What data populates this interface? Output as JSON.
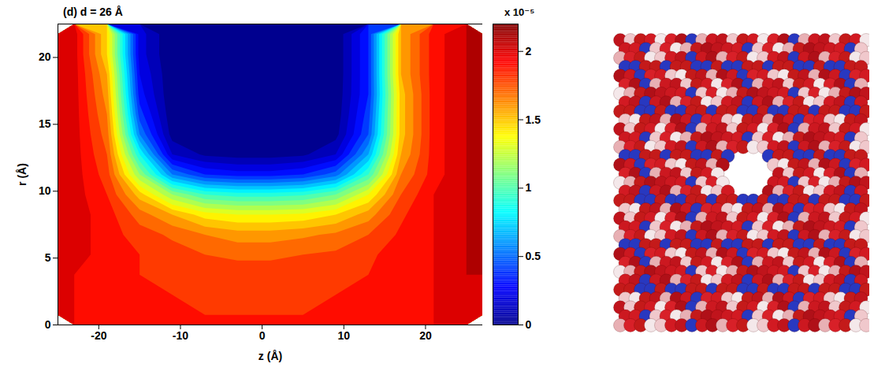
{
  "chart_data": {
    "type": "heatmap",
    "title": "(d) d = 26 Å",
    "x_label": "z (Å)",
    "y_label": "r (Å)",
    "xlim": [
      -25,
      27
    ],
    "xticks": [
      -20,
      -10,
      0,
      10,
      20
    ],
    "ylim": [
      0,
      22.5
    ],
    "yticks": [
      0,
      5,
      10,
      15,
      20
    ],
    "color": "jet",
    "z": [
      -23,
      -19,
      -15,
      -11,
      -7,
      -3,
      1,
      5,
      9,
      13,
      17,
      21,
      25
    ],
    "r": [
      0.75,
      2.25,
      3.75,
      5.25,
      6.75,
      8.25,
      9.75,
      11.25,
      12.75,
      14.25,
      15.75,
      17.25,
      18.75,
      20.25,
      21.75
    ],
    "cells": [
      [
        2.0,
        1.95,
        1.9,
        1.9,
        1.9,
        1.9,
        1.9,
        1.9,
        1.9,
        1.9,
        1.95,
        2.0,
        2.05
      ],
      [
        2.0,
        1.95,
        1.9,
        1.9,
        1.88,
        1.88,
        1.88,
        1.88,
        1.9,
        1.9,
        1.95,
        2.0,
        2.05
      ],
      [
        2.0,
        1.95,
        1.9,
        1.88,
        1.85,
        1.85,
        1.85,
        1.85,
        1.88,
        1.9,
        1.95,
        2.0,
        2.1
      ],
      [
        2.05,
        1.95,
        1.9,
        1.85,
        1.8,
        1.78,
        1.78,
        1.8,
        1.82,
        1.88,
        1.95,
        2.0,
        2.1
      ],
      [
        2.05,
        1.95,
        1.85,
        1.78,
        1.7,
        1.65,
        1.65,
        1.68,
        1.72,
        1.8,
        1.92,
        2.0,
        2.1
      ],
      [
        2.05,
        1.95,
        1.75,
        1.6,
        1.45,
        1.4,
        1.4,
        1.42,
        1.5,
        1.65,
        1.88,
        2.0,
        2.1
      ],
      [
        2.05,
        1.9,
        1.55,
        1.2,
        1.0,
        0.95,
        0.95,
        0.98,
        1.1,
        1.4,
        1.8,
        2.0,
        2.1
      ],
      [
        2.05,
        1.85,
        1.2,
        0.6,
        0.4,
        0.35,
        0.35,
        0.4,
        0.55,
        1.0,
        1.7,
        1.95,
        2.1
      ],
      [
        2.05,
        1.8,
        0.9,
        0.2,
        0.08,
        0.05,
        0.05,
        0.08,
        0.2,
        0.7,
        1.6,
        1.95,
        2.1
      ],
      [
        2.05,
        1.75,
        0.6,
        0.05,
        0.02,
        0.01,
        0.01,
        0.02,
        0.06,
        0.5,
        1.55,
        1.95,
        2.1
      ],
      [
        2.05,
        1.7,
        0.45,
        0.02,
        0,
        0,
        0,
        0,
        0.03,
        0.45,
        1.55,
        1.95,
        2.1
      ],
      [
        2.05,
        1.65,
        0.35,
        0.01,
        0,
        0,
        0,
        0,
        0.02,
        0.4,
        1.55,
        1.95,
        2.1
      ],
      [
        2.05,
        1.6,
        0.3,
        0.01,
        0,
        0,
        0,
        0,
        0.01,
        0.4,
        1.6,
        1.95,
        2.1
      ],
      [
        2.05,
        1.5,
        0.25,
        0,
        0,
        0,
        0,
        0,
        0.01,
        0.4,
        1.6,
        1.95,
        2.1
      ],
      [
        2.05,
        1.5,
        0.25,
        0,
        0,
        0,
        0,
        0,
        0.01,
        0.4,
        1.6,
        1.95,
        2.1
      ]
    ],
    "colorbar": {
      "range": [
        0,
        2.2
      ],
      "ticks": [
        0,
        0.5,
        1,
        1.5,
        2
      ],
      "multiplier": "x 10⁻⁵",
      "levels": [
        0,
        0.1,
        0.2,
        0.3,
        0.4,
        0.5,
        0.6,
        0.7,
        0.8,
        0.9,
        1.0,
        1.1,
        1.2,
        1.3,
        1.4,
        1.5,
        1.6,
        1.7,
        1.8,
        1.9,
        2.0,
        2.1
      ]
    }
  }
}
